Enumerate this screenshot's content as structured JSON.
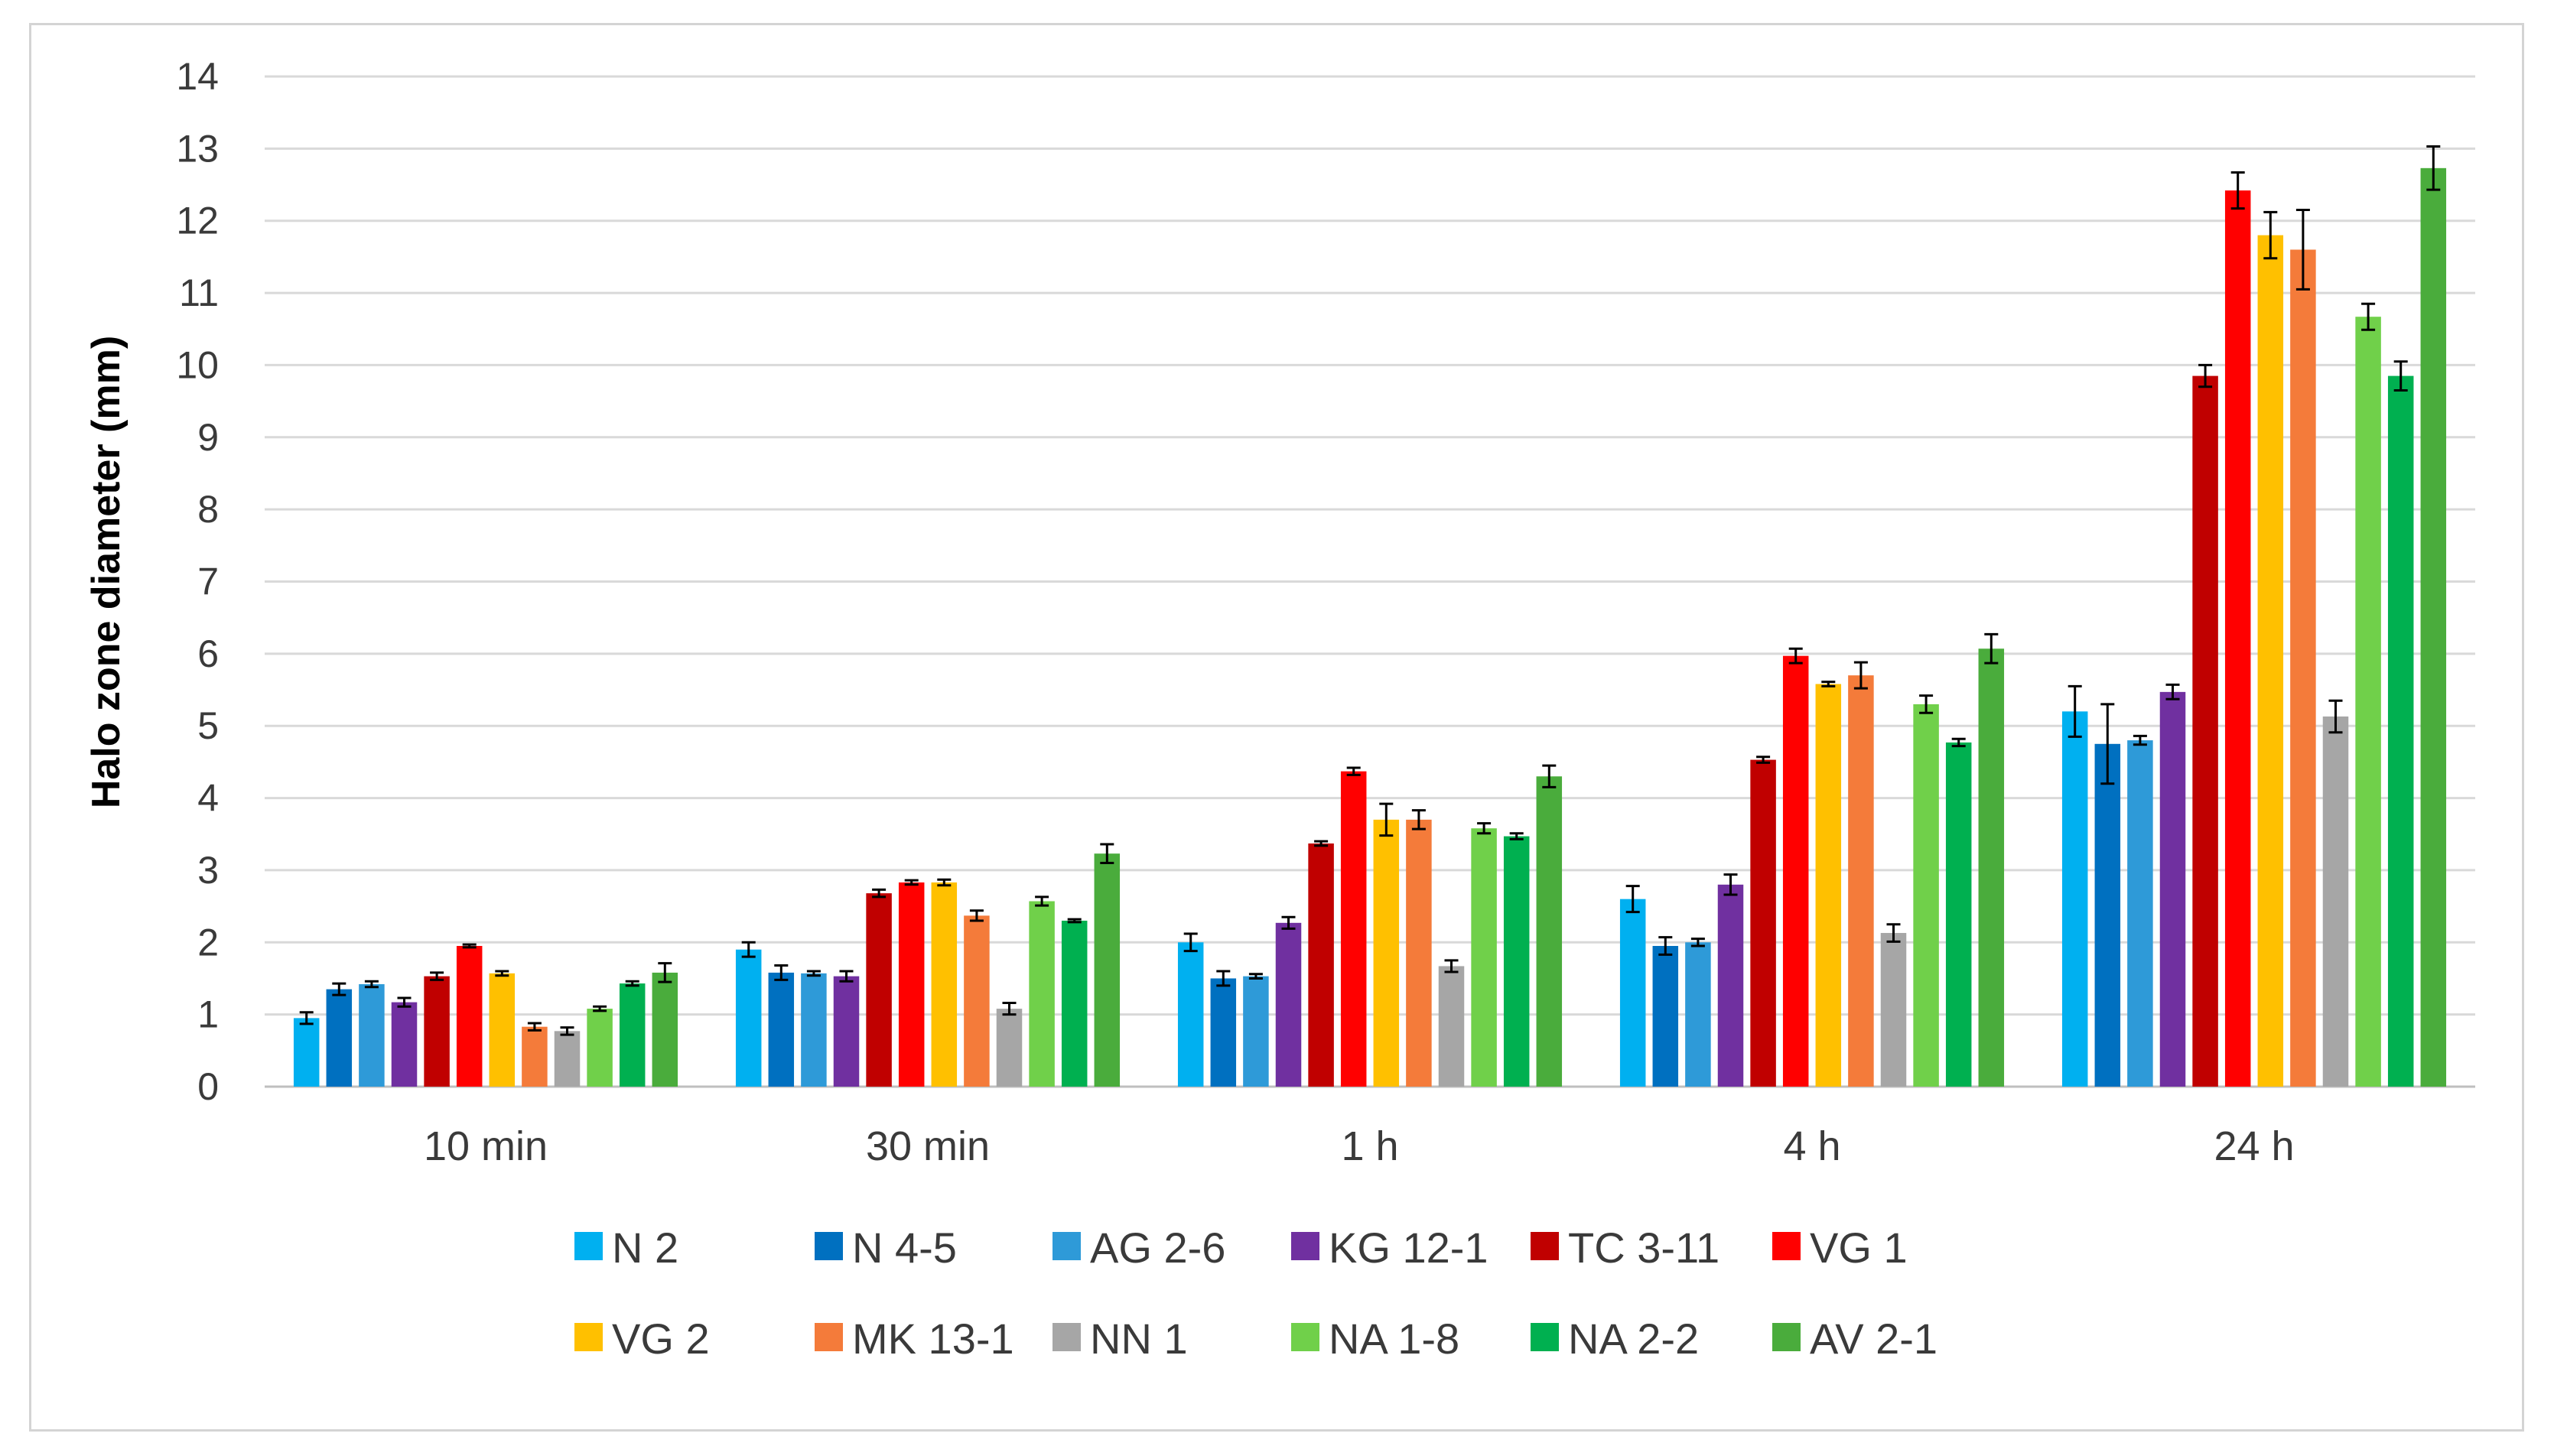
{
  "chart_data": {
    "type": "bar",
    "title": "",
    "xlabel": "",
    "ylabel": "Halo zone diameter (mm)",
    "ylim": [
      0,
      14
    ],
    "yticks": [
      "0",
      "1",
      "2",
      "3",
      "4",
      "5",
      "6",
      "7",
      "8",
      "9",
      "10",
      "11",
      "12",
      "13",
      "14"
    ],
    "grid": true,
    "legend_position": "bottom",
    "error_bars": true,
    "categories": [
      "10 min",
      "30 min",
      "1 h",
      "4 h",
      "24 h"
    ],
    "series": [
      {
        "name": "N 2",
        "color": "#00b0f0",
        "values": [
          0.95,
          1.9,
          2.0,
          2.6,
          5.2
        ],
        "errors": [
          0.08,
          0.1,
          0.12,
          0.18,
          0.35
        ]
      },
      {
        "name": "N 4-5",
        "color": "#0070c0",
        "values": [
          1.35,
          1.58,
          1.5,
          1.95,
          4.75
        ],
        "errors": [
          0.08,
          0.1,
          0.1,
          0.12,
          0.55
        ]
      },
      {
        "name": "AG 2-6",
        "color": "#2e9ad8",
        "values": [
          1.42,
          1.57,
          1.53,
          2.0,
          4.8
        ],
        "errors": [
          0.04,
          0.03,
          0.03,
          0.05,
          0.06
        ]
      },
      {
        "name": "KG 12-1",
        "color": "#7030a0",
        "values": [
          1.17,
          1.53,
          2.27,
          2.8,
          5.47
        ],
        "errors": [
          0.06,
          0.07,
          0.08,
          0.14,
          0.1
        ]
      },
      {
        "name": "TC 3-11",
        "color": "#c00000",
        "values": [
          1.53,
          2.68,
          3.37,
          4.53,
          9.85
        ],
        "errors": [
          0.05,
          0.05,
          0.03,
          0.04,
          0.15
        ]
      },
      {
        "name": "VG 1",
        "color": "#ff0000",
        "values": [
          1.95,
          2.83,
          4.37,
          5.97,
          12.42
        ],
        "errors": [
          0.02,
          0.03,
          0.05,
          0.1,
          0.25
        ]
      },
      {
        "name": "VG 2",
        "color": "#ffc000",
        "values": [
          1.57,
          2.83,
          3.7,
          5.58,
          11.8
        ],
        "errors": [
          0.03,
          0.04,
          0.22,
          0.03,
          0.32
        ]
      },
      {
        "name": "MK 13-1",
        "color": "#f47b3a",
        "values": [
          0.83,
          2.37,
          3.7,
          5.7,
          11.6
        ],
        "errors": [
          0.05,
          0.07,
          0.13,
          0.18,
          0.55
        ]
      },
      {
        "name": "NN 1",
        "color": "#a6a6a6",
        "values": [
          0.77,
          1.08,
          1.67,
          2.13,
          5.13
        ],
        "errors": [
          0.05,
          0.08,
          0.08,
          0.12,
          0.22
        ]
      },
      {
        "name": "NA 1-8",
        "color": "#70d04a",
        "values": [
          1.08,
          2.57,
          3.58,
          5.3,
          10.67
        ],
        "errors": [
          0.03,
          0.06,
          0.07,
          0.12,
          0.18
        ]
      },
      {
        "name": "NA 2-2",
        "color": "#00b050",
        "values": [
          1.43,
          2.3,
          3.47,
          4.77,
          9.85
        ],
        "errors": [
          0.03,
          0.02,
          0.04,
          0.05,
          0.2
        ]
      },
      {
        "name": "AV 2-1",
        "color": "#4aac3c",
        "values": [
          1.58,
          3.23,
          4.3,
          6.07,
          12.73
        ],
        "errors": [
          0.13,
          0.13,
          0.15,
          0.2,
          0.3
        ]
      }
    ]
  }
}
